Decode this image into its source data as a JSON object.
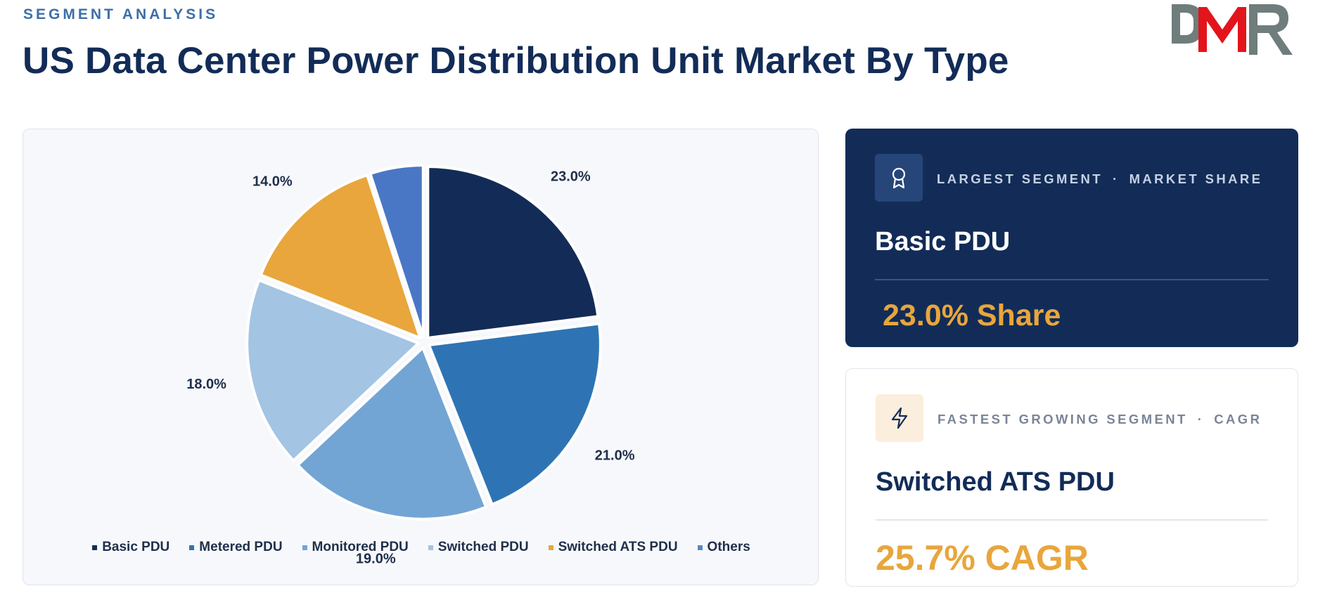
{
  "header": {
    "eyebrow": "SEGMENT ANALYSIS",
    "title": "US Data Center Power Distribution Unit Market By Type"
  },
  "logo": {
    "text": "DMR",
    "colors": {
      "gray": "#6f7d7c",
      "red": "#e3141b"
    }
  },
  "chart_data": {
    "type": "pie",
    "title": "",
    "slices": [
      {
        "label": "Basic PDU",
        "value": 23.0,
        "display": "23.0%",
        "color": "#132c57",
        "legend_color": "#132c57"
      },
      {
        "label": "Metered PDU",
        "value": 21.0,
        "display": "21.0%",
        "color": "#2e74b5",
        "legend_color": "#2e74b5"
      },
      {
        "label": "Monitored PDU",
        "value": 19.0,
        "display": "19.0%",
        "color": "#72a5d4",
        "legend_color": "#72a5d4"
      },
      {
        "label": "Switched PDU",
        "value": 18.0,
        "display": "18.0%",
        "color": "#a3c4e3",
        "legend_color": "#a3c4e3"
      },
      {
        "label": "Switched ATS PDU",
        "value": 14.0,
        "display": "14.0%",
        "color": "#e8a63c",
        "legend_color": "#e8a63c"
      },
      {
        "label": "Others",
        "value": 5.0,
        "display": "5.0%",
        "color": "#4a77c5",
        "legend_color": "#5b87c2"
      }
    ],
    "legend_position": "bottom"
  },
  "cards": {
    "largest": {
      "label_left": "LARGEST SEGMENT",
      "separator": "·",
      "label_right": "MARKET SHARE",
      "value": "Basic PDU",
      "metric": "23.0% Share",
      "icon": "award-ribbon-icon"
    },
    "fastest": {
      "label_left": "FASTEST GROWING SEGMENT",
      "separator": "·",
      "label_right": "CAGR",
      "value": "Switched ATS PDU",
      "metric": "25.7% CAGR",
      "icon": "lightning-bolt-icon"
    }
  },
  "colors": {
    "navy": "#132c57",
    "accent": "#e8a63c",
    "eyebrow": "#3d6fa8"
  }
}
